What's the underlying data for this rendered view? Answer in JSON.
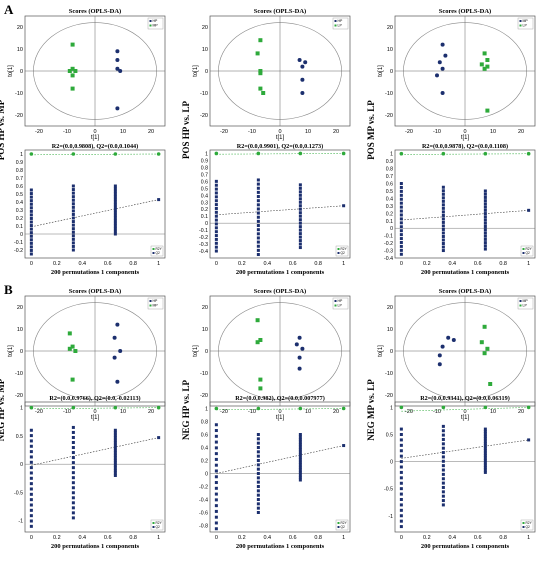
{
  "colors": {
    "hp": "#1c2f6e",
    "mp": "#2eaa3b",
    "axis": "#000000",
    "grid": "#999999",
    "r2": "#2eaa3b",
    "q2": "#1c2f6e"
  },
  "panel_labels": [
    "A",
    "B"
  ],
  "score_title": "Scores (OPLS-DA)",
  "score_xlabel": "t[1]",
  "score_ylabel": "to[1]",
  "perm_xlabel": "200 permutations 1 components",
  "perm_legend": [
    "R2Y",
    "Q2"
  ],
  "chart_data": [
    {
      "type": "scatter",
      "panel": "A",
      "col": 0,
      "title": "Scores (OPLS-DA)",
      "xlabel": "t[1]",
      "ylabel": "to[1]",
      "side_label": "POS HP vs. MP",
      "legend": [
        "HP",
        "MP"
      ],
      "xlim": [
        -25,
        25
      ],
      "ylim": [
        -25,
        25
      ],
      "xticks": [
        -20,
        -10,
        0,
        10,
        20
      ],
      "yticks": [
        -20,
        -10,
        0,
        10,
        20
      ],
      "series": [
        {
          "name": "HP",
          "points": [
            [
              8,
              9
            ],
            [
              8,
              5
            ],
            [
              8,
              1
            ],
            [
              9,
              0
            ],
            [
              8,
              -17
            ]
          ]
        },
        {
          "name": "MP",
          "points": [
            [
              -8,
              12
            ],
            [
              -9,
              0
            ],
            [
              -8,
              1
            ],
            [
              -7,
              0
            ],
            [
              -8,
              -2
            ],
            [
              -8,
              -8
            ]
          ]
        }
      ]
    },
    {
      "type": "scatter",
      "panel": "A",
      "col": 1,
      "title": "Scores (OPLS-DA)",
      "xlabel": "t[1]",
      "ylabel": "to[1]",
      "side_label": "POS HP vs. LP",
      "legend": [
        "HP",
        "LP"
      ],
      "xlim": [
        -25,
        25
      ],
      "ylim": [
        -25,
        25
      ],
      "xticks": [
        -20,
        -10,
        0,
        10,
        20
      ],
      "yticks": [
        -20,
        -10,
        0,
        10,
        20
      ],
      "series": [
        {
          "name": "HP",
          "points": [
            [
              7,
              5
            ],
            [
              9,
              4
            ],
            [
              8,
              2
            ],
            [
              8,
              -4
            ],
            [
              8,
              -10
            ]
          ]
        },
        {
          "name": "LP",
          "points": [
            [
              -7,
              14
            ],
            [
              -8,
              8
            ],
            [
              -7,
              0
            ],
            [
              -7,
              -1
            ],
            [
              -7,
              -8
            ],
            [
              -6,
              -10
            ]
          ]
        }
      ]
    },
    {
      "type": "scatter",
      "panel": "A",
      "col": 2,
      "title": "Scores (OPLS-DA)",
      "xlabel": "t[1]",
      "ylabel": "to[1]",
      "side_label": "POS MP vs. LP",
      "legend": [
        "MP",
        "LP"
      ],
      "xlim": [
        -25,
        25
      ],
      "ylim": [
        -25,
        25
      ],
      "xticks": [
        -20,
        -10,
        0,
        10,
        20
      ],
      "yticks": [
        -20,
        -10,
        0,
        10,
        20
      ],
      "series": [
        {
          "name": "MP",
          "points": [
            [
              -8,
              12
            ],
            [
              -7,
              7
            ],
            [
              -9,
              4
            ],
            [
              -8,
              1
            ],
            [
              -10,
              -2
            ],
            [
              -8,
              -10
            ]
          ]
        },
        {
          "name": "LP",
          "points": [
            [
              7,
              8
            ],
            [
              8,
              5
            ],
            [
              6,
              3
            ],
            [
              7,
              1
            ],
            [
              8,
              2
            ],
            [
              8,
              -18
            ]
          ]
        }
      ]
    },
    {
      "type": "scatter",
      "panel": "B",
      "col": 0,
      "title": "Scores (OPLS-DA)",
      "xlabel": "t[1]",
      "ylabel": "to[1]",
      "side_label": "NEG HP vs. MP",
      "legend": [
        "HP",
        "MP"
      ],
      "xlim": [
        -25,
        25
      ],
      "ylim": [
        -25,
        25
      ],
      "xticks": [
        -20,
        -10,
        0,
        10,
        20
      ],
      "yticks": [
        -20,
        -10,
        0,
        10,
        20
      ],
      "series": [
        {
          "name": "HP",
          "points": [
            [
              8,
              12
            ],
            [
              7,
              6
            ],
            [
              9,
              0
            ],
            [
              7,
              -3
            ],
            [
              8,
              -14
            ]
          ]
        },
        {
          "name": "MP",
          "points": [
            [
              -9,
              8
            ],
            [
              -8,
              2
            ],
            [
              -9,
              1
            ],
            [
              -7,
              0
            ],
            [
              -8,
              -13
            ]
          ]
        }
      ]
    },
    {
      "type": "scatter",
      "panel": "B",
      "col": 1,
      "title": "Scores (OPLS-DA)",
      "xlabel": "t[1]",
      "ylabel": "to[1]",
      "side_label": "NEG HP vs. LP",
      "legend": [
        "HP",
        "LP"
      ],
      "xlim": [
        -25,
        25
      ],
      "ylim": [
        -25,
        25
      ],
      "xticks": [
        -20,
        -10,
        0,
        10,
        20
      ],
      "yticks": [
        -20,
        -10,
        0,
        10,
        20
      ],
      "series": [
        {
          "name": "HP",
          "points": [
            [
              7,
              6
            ],
            [
              6,
              3
            ],
            [
              8,
              1
            ],
            [
              7,
              -3
            ],
            [
              7,
              -8
            ]
          ]
        },
        {
          "name": "LP",
          "points": [
            [
              -8,
              14
            ],
            [
              -7,
              5
            ],
            [
              -8,
              4
            ],
            [
              -7,
              -13
            ],
            [
              -7,
              -17
            ]
          ]
        }
      ]
    },
    {
      "type": "scatter",
      "panel": "B",
      "col": 2,
      "title": "Scores (OPLS-DA)",
      "xlabel": "t[1]",
      "ylabel": "to[1]",
      "side_label": "NEG MP vs. LP",
      "legend": [
        "MP",
        "LP"
      ],
      "xlim": [
        -25,
        25
      ],
      "ylim": [
        -25,
        25
      ],
      "xticks": [
        -20,
        -10,
        0,
        10,
        20
      ],
      "yticks": [
        -20,
        -10,
        0,
        10,
        20
      ],
      "series": [
        {
          "name": "MP",
          "points": [
            [
              -6,
              6
            ],
            [
              -4,
              5
            ],
            [
              -8,
              2
            ],
            [
              -9,
              -2
            ],
            [
              -9,
              -6
            ]
          ]
        },
        {
          "name": "LP",
          "points": [
            [
              7,
              11
            ],
            [
              6,
              4
            ],
            [
              8,
              1
            ],
            [
              7,
              -1
            ],
            [
              9,
              -15
            ]
          ]
        }
      ]
    },
    {
      "type": "scatter",
      "panel": "A",
      "col": 0,
      "title": "R2=(0.0,0.9808), Q2=(0.0,0.1044)",
      "xlabel": "200 permutations 1 components",
      "legend": [
        "R2Y",
        "Q2"
      ],
      "xlim": [
        -0.05,
        1.05
      ],
      "ylim": [
        -0.3,
        1.05
      ],
      "xticks": [
        0,
        0.2,
        0.4,
        0.6,
        0.8,
        1.0
      ],
      "yticks": [
        -0.2,
        -0.1,
        0,
        0.1,
        0.2,
        0.3,
        0.4,
        0.5,
        0.6,
        0.7,
        0.8,
        0.9,
        1.0
      ],
      "r2_points": [
        [
          0.0,
          1.0
        ],
        [
          0.33,
          1.0
        ],
        [
          0.66,
          1.0
        ],
        [
          1.0,
          1.0
        ]
      ],
      "q2_columns": [
        [
          0.0,
          -0.25,
          0.55
        ],
        [
          0.33,
          -0.2,
          0.6
        ],
        [
          0.66,
          0.0,
          0.6
        ]
      ],
      "q2_final": [
        1.0,
        0.43
      ],
      "r2_line": [
        [
          0,
          0.99
        ],
        [
          1.0,
          1.0
        ]
      ],
      "q2_line": [
        [
          0,
          0.09
        ],
        [
          1.0,
          0.43
        ]
      ]
    },
    {
      "type": "scatter",
      "panel": "A",
      "col": 1,
      "title": "R2=(0.0,0.9901), Q2=(0.0,0.1273)",
      "xlabel": "200 permutations 1 components",
      "legend": [
        "R2Y",
        "Q2"
      ],
      "xlim": [
        -0.05,
        1.05
      ],
      "ylim": [
        -0.5,
        1.05
      ],
      "xticks": [
        0,
        0.2,
        0.4,
        0.6,
        0.8,
        1.0
      ],
      "yticks": [
        -0.4,
        -0.3,
        -0.2,
        -0.1,
        0,
        0.1,
        0.2,
        0.3,
        0.4,
        0.5,
        0.6,
        0.7,
        0.8,
        0.9,
        1.0
      ],
      "r2_points": [
        [
          0.0,
          1.0
        ],
        [
          0.33,
          1.0
        ],
        [
          0.66,
          1.0
        ],
        [
          1.0,
          1.0
        ]
      ],
      "q2_columns": [
        [
          0.0,
          -0.4,
          0.6
        ],
        [
          0.33,
          -0.45,
          0.62
        ],
        [
          0.66,
          -0.35,
          0.55
        ]
      ],
      "q2_final": [
        1.0,
        0.25
      ],
      "r2_line": [
        [
          0,
          0.99
        ],
        [
          1.0,
          1.0
        ]
      ],
      "q2_line": [
        [
          0,
          0.12
        ],
        [
          1.0,
          0.25
        ]
      ]
    },
    {
      "type": "scatter",
      "panel": "A",
      "col": 2,
      "title": "R2=(0.0,0.9878), Q2=(0.0,0.1108)",
      "xlabel": "200 permutations 1 components",
      "legend": [
        "R2Y",
        "Q2"
      ],
      "xlim": [
        -0.05,
        1.05
      ],
      "ylim": [
        -0.4,
        1.05
      ],
      "xticks": [
        0,
        0.2,
        0.4,
        0.6,
        0.8,
        1.0
      ],
      "yticks": [
        -0.4,
        -0.3,
        -0.2,
        -0.1,
        0,
        0.1,
        0.2,
        0.3,
        0.4,
        0.5,
        0.6,
        0.7,
        0.8,
        0.9,
        1.0
      ],
      "r2_points": [
        [
          0.0,
          1.0
        ],
        [
          0.33,
          1.0
        ],
        [
          0.66,
          1.0
        ],
        [
          1.0,
          1.0
        ]
      ],
      "q2_columns": [
        [
          0.0,
          -0.35,
          0.6
        ],
        [
          0.33,
          -0.3,
          0.55
        ],
        [
          0.66,
          -0.28,
          0.5
        ]
      ],
      "q2_final": [
        1.0,
        0.24
      ],
      "r2_line": [
        [
          0,
          0.99
        ],
        [
          1.0,
          1.0
        ]
      ],
      "q2_line": [
        [
          0,
          0.11
        ],
        [
          1.0,
          0.24
        ]
      ]
    },
    {
      "type": "scatter",
      "panel": "B",
      "col": 0,
      "title": "R2=(0.0,0.9766), Q2=(0.0,-0.02113)",
      "xlabel": "200 permutations 1 components",
      "legend": [
        "R2Y",
        "Q2"
      ],
      "xlim": [
        -0.05,
        1.05
      ],
      "ylim": [
        -1.2,
        1.1
      ],
      "xticks": [
        0,
        0.2,
        0.4,
        0.6,
        0.8,
        1.0
      ],
      "yticks": [
        -1.0,
        -0.5,
        0,
        0.5,
        1.0
      ],
      "r2_points": [
        [
          0.0,
          1.0
        ],
        [
          0.33,
          1.0
        ],
        [
          0.66,
          1.0
        ],
        [
          1.0,
          1.0
        ]
      ],
      "q2_columns": [
        [
          0.0,
          -1.1,
          0.6
        ],
        [
          0.33,
          -0.95,
          0.65
        ],
        [
          0.66,
          -0.2,
          0.6
        ]
      ],
      "q2_final": [
        1.0,
        0.47
      ],
      "r2_line": [
        [
          0,
          0.98
        ],
        [
          1.0,
          1.0
        ]
      ],
      "q2_line": [
        [
          0,
          -0.02
        ],
        [
          1.0,
          0.47
        ]
      ]
    },
    {
      "type": "scatter",
      "panel": "B",
      "col": 1,
      "title": "R2=(0.0,0.982), Q2=(0.0,0.007977)",
      "xlabel": "200 permutations 1 components",
      "legend": [
        "R2Y",
        "Q2"
      ],
      "xlim": [
        -0.05,
        1.05
      ],
      "ylim": [
        -0.9,
        1.1
      ],
      "xticks": [
        0,
        0.2,
        0.4,
        0.6,
        0.8,
        1.0
      ],
      "yticks": [
        -0.8,
        -0.6,
        -0.4,
        -0.2,
        0,
        0.2,
        0.4,
        0.6,
        0.8,
        1.0
      ],
      "r2_points": [
        [
          0.0,
          1.0
        ],
        [
          0.33,
          1.0
        ],
        [
          0.66,
          1.0
        ],
        [
          1.0,
          1.0
        ]
      ],
      "q2_columns": [
        [
          0.0,
          -0.85,
          0.75
        ],
        [
          0.33,
          -0.6,
          0.6
        ],
        [
          0.66,
          -0.1,
          0.6
        ]
      ],
      "q2_final": [
        1.0,
        0.43
      ],
      "r2_line": [
        [
          0,
          0.98
        ],
        [
          1.0,
          1.0
        ]
      ],
      "q2_line": [
        [
          0,
          0.0
        ],
        [
          1.0,
          0.43
        ]
      ]
    },
    {
      "type": "scatter",
      "panel": "B",
      "col": 2,
      "title": "R2=(0.0,0.9341), Q2=(0.0,0.06319)",
      "xlabel": "200 permutations 1 components",
      "legend": [
        "R2Y",
        "Q2"
      ],
      "xlim": [
        -0.05,
        1.05
      ],
      "ylim": [
        -1.3,
        1.1
      ],
      "xticks": [
        0,
        0.2,
        0.4,
        0.6,
        0.8,
        1.0
      ],
      "yticks": [
        -1.0,
        -0.5,
        0,
        0.5,
        1.0
      ],
      "r2_points": [
        [
          0.0,
          1.0
        ],
        [
          0.33,
          1.0
        ],
        [
          0.66,
          1.0
        ],
        [
          1.0,
          1.0
        ]
      ],
      "q2_columns": [
        [
          0.0,
          -1.2,
          0.6
        ],
        [
          0.33,
          -0.8,
          0.65
        ],
        [
          0.66,
          -0.2,
          0.6
        ]
      ],
      "q2_final": [
        1.0,
        0.4
      ],
      "r2_line": [
        [
          0,
          0.93
        ],
        [
          1.0,
          1.0
        ]
      ],
      "q2_line": [
        [
          0,
          0.06
        ],
        [
          1.0,
          0.4
        ]
      ]
    }
  ]
}
